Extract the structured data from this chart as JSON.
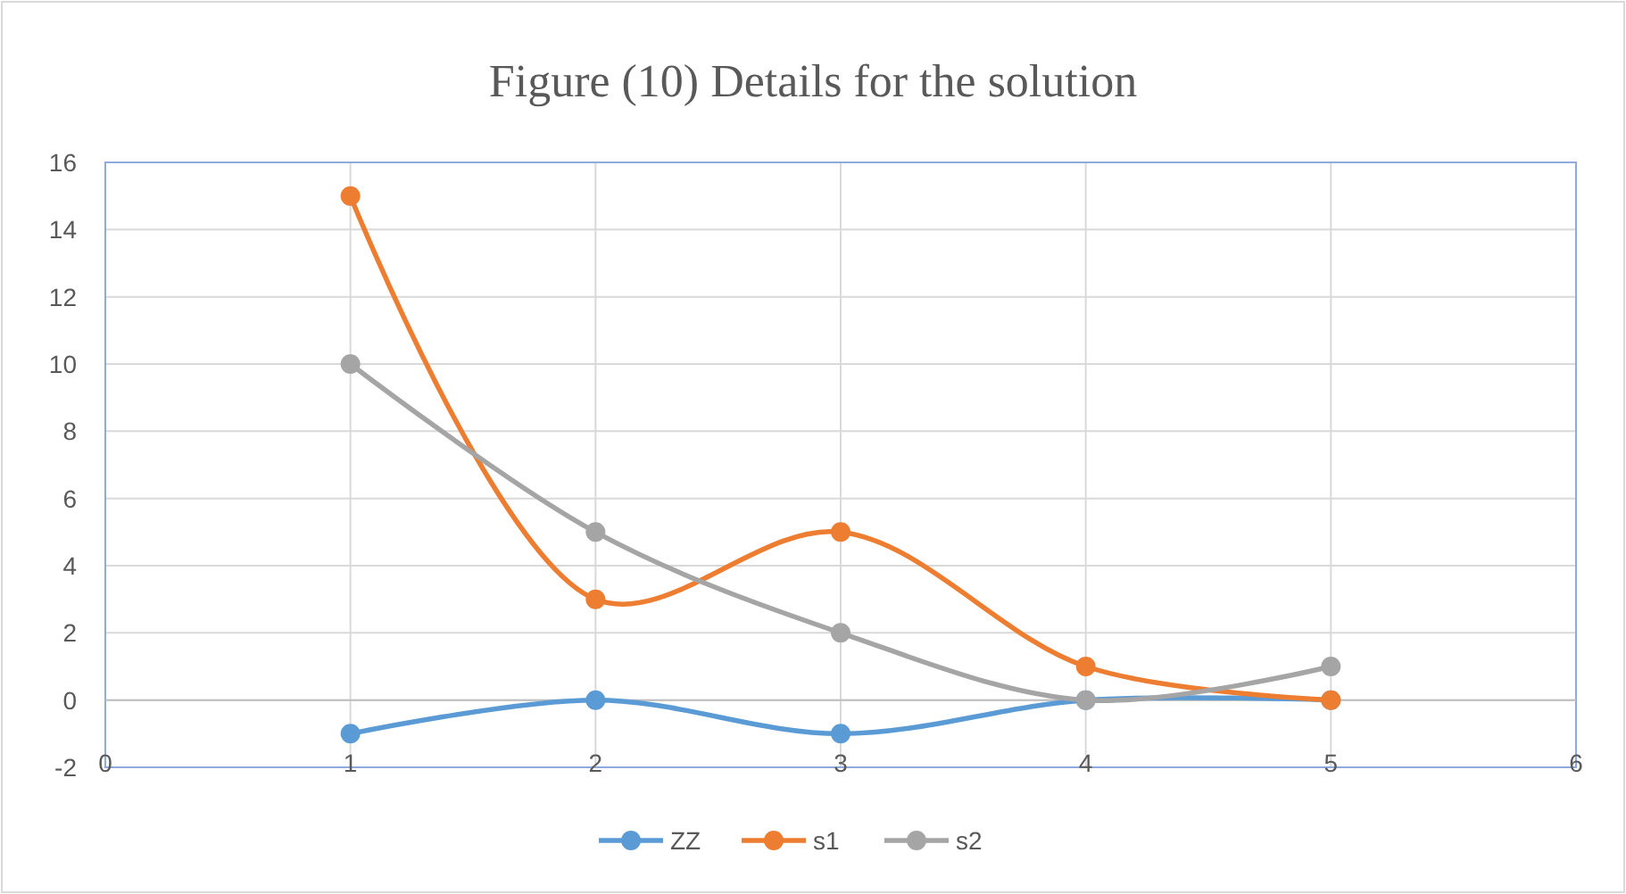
{
  "chart_data": {
    "type": "line",
    "title": "Figure (10) Details for the solution",
    "x": [
      1,
      2,
      3,
      4,
      5
    ],
    "series": [
      {
        "name": "ZZ",
        "color": "#5b9bd5",
        "values": [
          -1,
          0,
          -1,
          0,
          0
        ]
      },
      {
        "name": "s1",
        "color": "#ed7d31",
        "values": [
          15,
          3,
          5,
          1,
          0
        ]
      },
      {
        "name": "s2",
        "color": "#a5a5a5",
        "values": [
          10,
          5,
          2,
          0,
          1
        ]
      }
    ],
    "xlim": [
      0,
      6
    ],
    "xticks": [
      0,
      1,
      2,
      3,
      4,
      5,
      6
    ],
    "ylim": [
      -2,
      16
    ],
    "yticks": [
      -2,
      0,
      2,
      4,
      6,
      8,
      10,
      12,
      14,
      16
    ],
    "grid": true,
    "legend": "bottom",
    "marker": "circle",
    "line_style": "solid"
  }
}
